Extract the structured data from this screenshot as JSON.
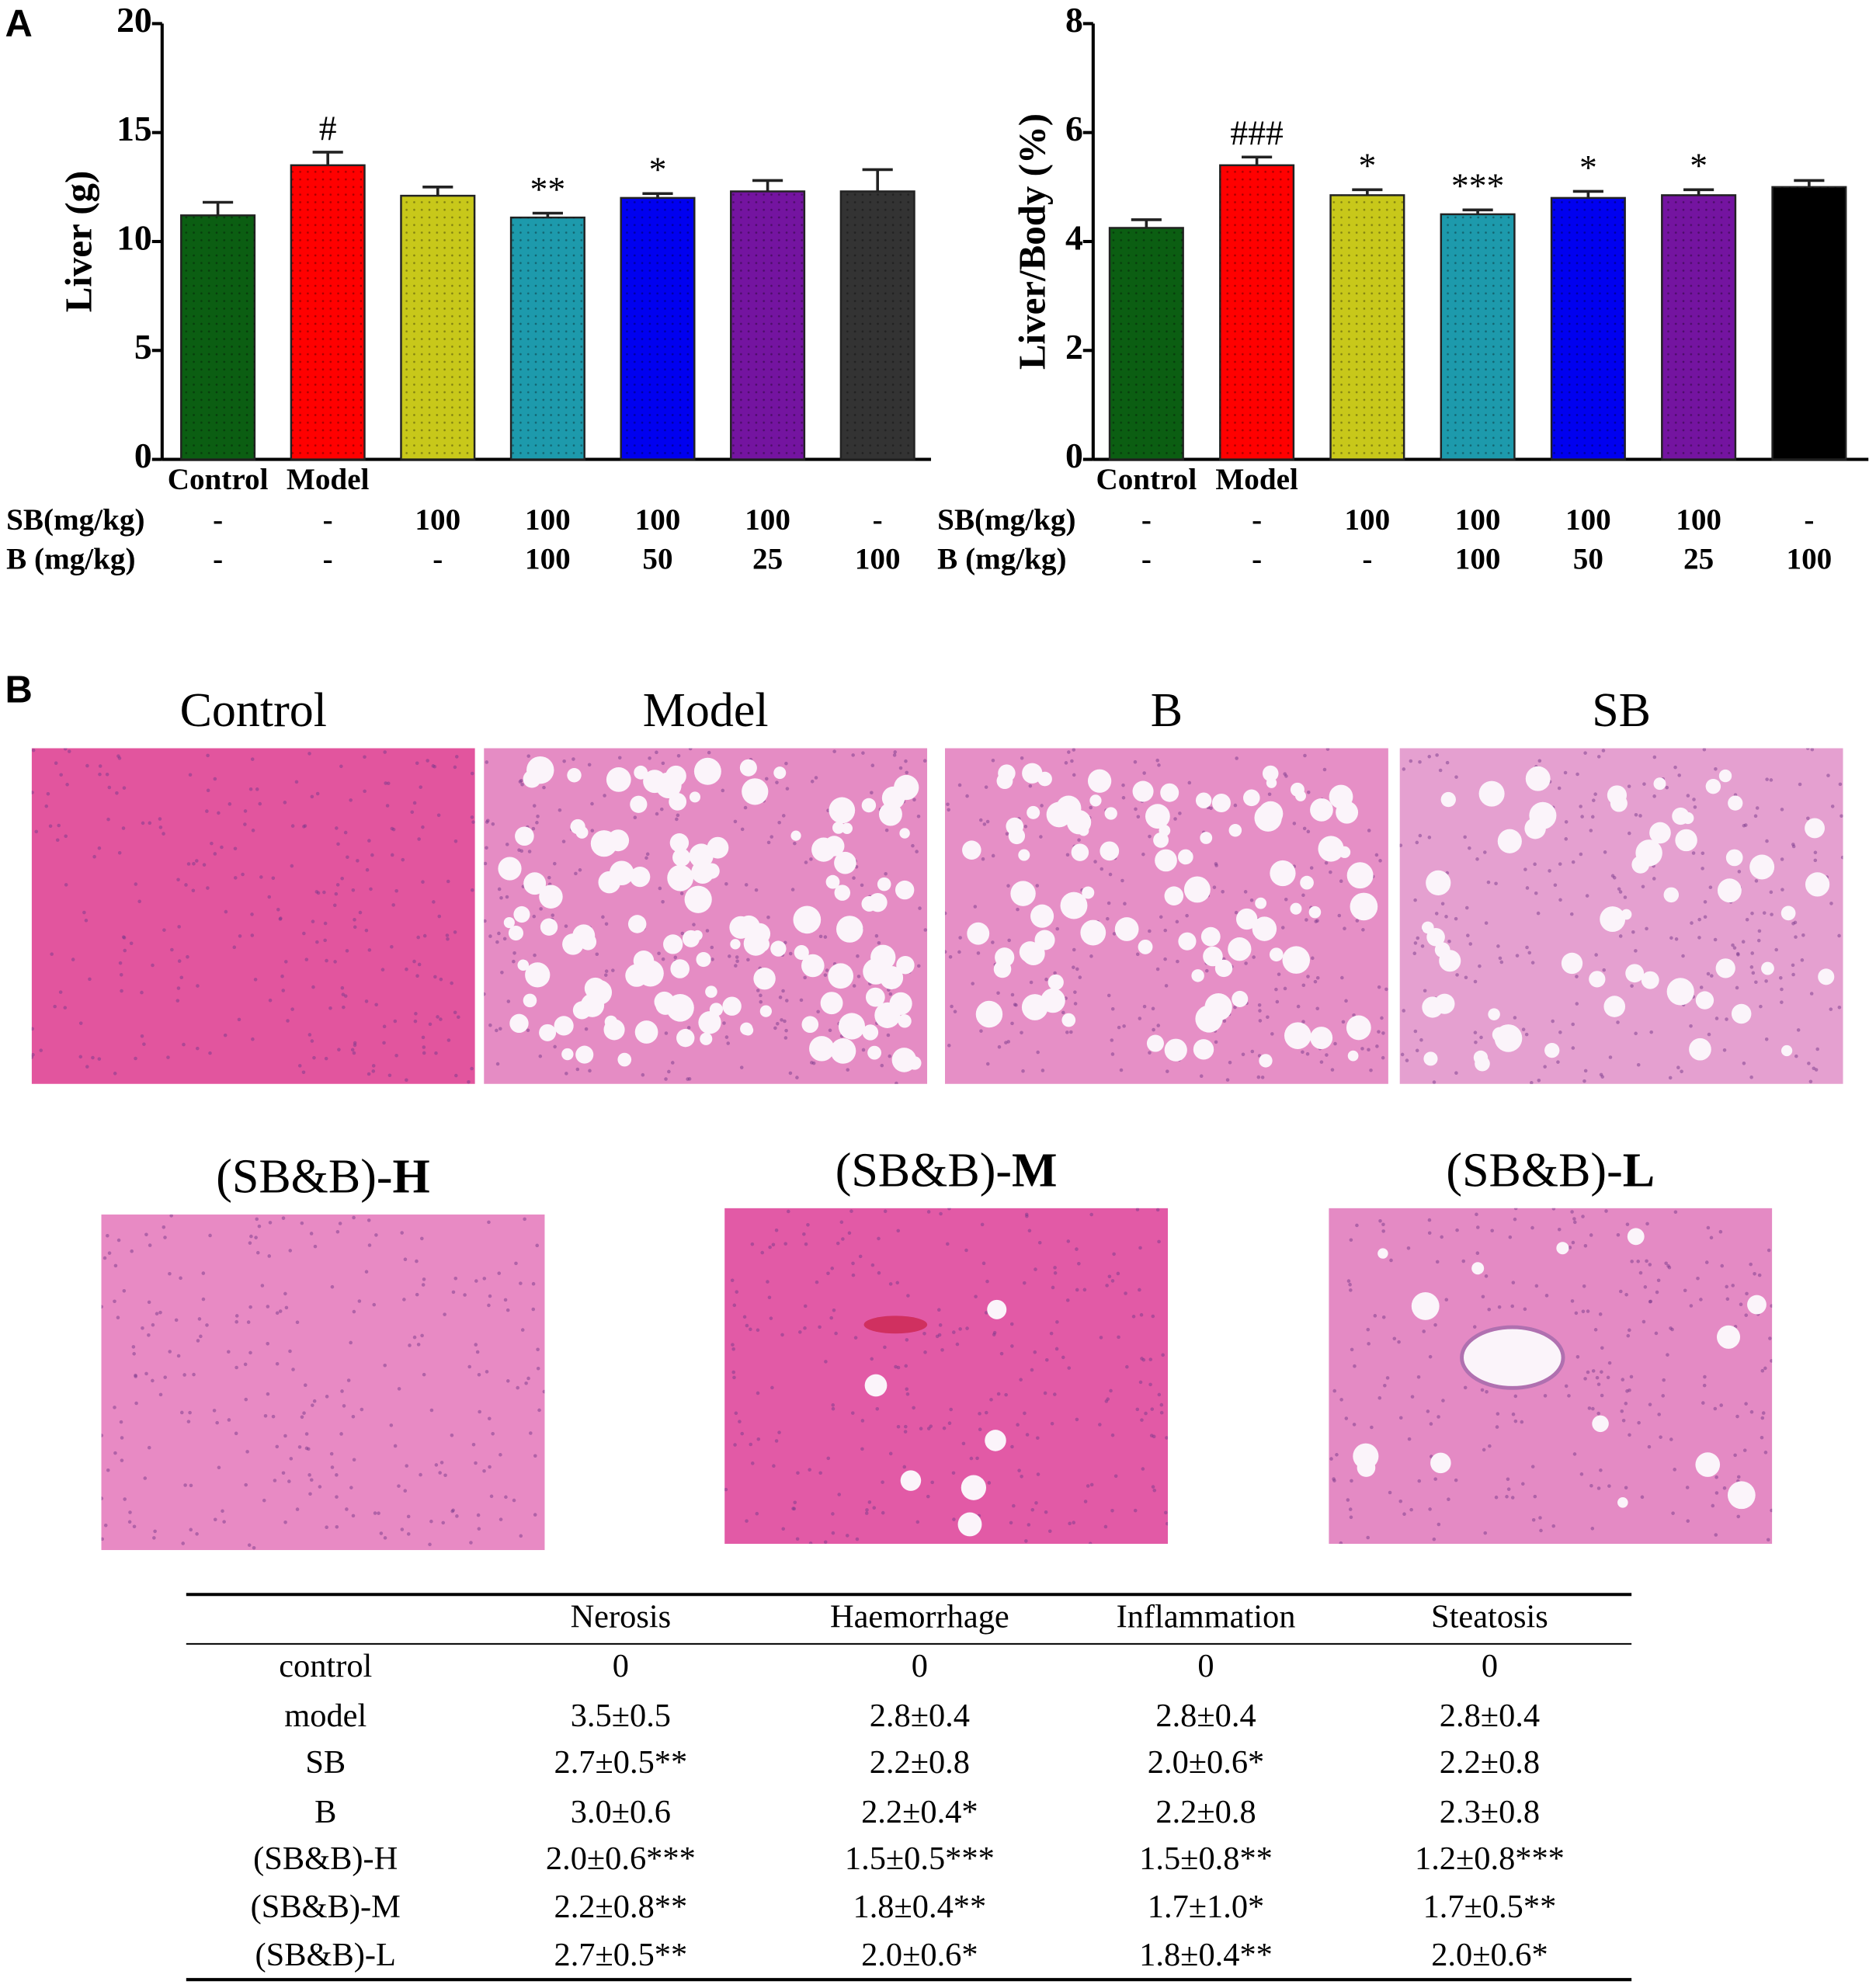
{
  "panel_labels": [
    "A",
    "B"
  ],
  "chart_data": [
    {
      "type": "bar",
      "ylabel": "Liver (g)",
      "categories": [
        "Control",
        "Model",
        null,
        null,
        null,
        null,
        null
      ],
      "values": [
        11.2,
        13.5,
        12.1,
        11.1,
        12.0,
        12.3,
        12.3
      ],
      "errors": [
        0.6,
        0.6,
        0.4,
        0.2,
        0.2,
        0.5,
        1.0
      ],
      "annotations": [
        null,
        "#",
        null,
        "**",
        "*",
        null,
        null
      ],
      "colors": [
        "#0b5e12",
        "#ff0000",
        "#c8c81a",
        "#1d9aac",
        "#0000f0",
        "#7414a0",
        "#333333"
      ],
      "ylim": [
        0,
        20
      ],
      "yticks": [
        0,
        5,
        10,
        15,
        20
      ],
      "rows": [
        {
          "label": "SB(mg/kg)",
          "values": [
            "-",
            "-",
            "100",
            "100",
            "100",
            "100",
            "-"
          ]
        },
        {
          "label": "B  (mg/kg)",
          "values": [
            "-",
            "-",
            "-",
            "100",
            "50",
            "25",
            "100"
          ]
        }
      ]
    },
    {
      "type": "bar",
      "ylabel": "Liver/Body (%)",
      "categories": [
        "Control",
        "Model",
        null,
        null,
        null,
        null,
        null
      ],
      "values": [
        4.25,
        5.4,
        4.85,
        4.5,
        4.8,
        4.85,
        5.0
      ],
      "errors": [
        0.15,
        0.15,
        0.1,
        0.08,
        0.12,
        0.1,
        0.12
      ],
      "annotations": [
        null,
        "###",
        "*",
        "***",
        "*",
        "*",
        null
      ],
      "colors": [
        "#0b5e12",
        "#ff0000",
        "#c8c81a",
        "#1d9aac",
        "#0000f0",
        "#7414a0",
        "#000000"
      ],
      "ylim": [
        0,
        8
      ],
      "yticks": [
        0,
        2,
        4,
        6,
        8
      ],
      "rows": [
        {
          "label": "SB(mg/kg)",
          "values": [
            "-",
            "-",
            "100",
            "100",
            "100",
            "100",
            "-"
          ]
        },
        {
          "label": "B  (mg/kg)",
          "values": [
            "-",
            "-",
            "-",
            "100",
            "50",
            "25",
            "100"
          ]
        }
      ]
    }
  ],
  "images": [
    {
      "title": "Control"
    },
    {
      "title": "Model"
    },
    {
      "title": "B"
    },
    {
      "title": "SB"
    },
    {
      "title": "(SB&B)-",
      "title_bold": "H"
    },
    {
      "title": "(SB&B)-",
      "title_bold": "M"
    },
    {
      "title": "(SB&B)-",
      "title_bold": "L"
    }
  ],
  "table": {
    "columns": [
      "Nerosis",
      "Haemorrhage",
      "Inflammation",
      "Steatosis"
    ],
    "rows": [
      {
        "label": "control",
        "cells": [
          "0",
          "0",
          "0",
          "0"
        ]
      },
      {
        "label": "model",
        "cells": [
          "3.5±0.5",
          "2.8±0.4",
          "2.8±0.4",
          "2.8±0.4"
        ]
      },
      {
        "label": "SB",
        "cells": [
          "2.7±0.5**",
          "2.2±0.8",
          "2.0±0.6*",
          "2.2±0.8"
        ]
      },
      {
        "label": "B",
        "cells": [
          "3.0±0.6",
          "2.2±0.4*",
          "2.2±0.8",
          "2.3±0.8"
        ]
      },
      {
        "label": "(SB&B)-H",
        "cells": [
          "2.0±0.6***",
          "1.5±0.5***",
          "1.5±0.8**",
          "1.2±0.8***"
        ]
      },
      {
        "label": "(SB&B)-M",
        "cells": [
          "2.2±0.8**",
          "1.8±0.4**",
          "1.7±1.0*",
          "1.7±0.5**"
        ]
      },
      {
        "label": "(SB&B)-L",
        "cells": [
          "2.7±0.5**",
          "2.0±0.6*",
          "1.8±0.4**",
          "2.0±0.6*"
        ]
      }
    ]
  }
}
